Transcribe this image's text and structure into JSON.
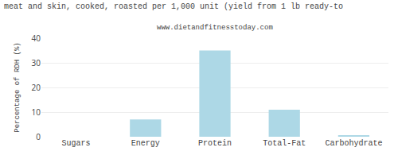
{
  "chart_data": {
    "type": "bar",
    "title": "meat and skin, cooked, roasted per 1,000 unit (yield from 1 lb ready-to",
    "subtitle": "www.dietandfitnesstoday.com",
    "categories": [
      "Sugars",
      "Energy",
      "Protein",
      "Total-Fat",
      "Carbohydrate"
    ],
    "values": [
      0.0,
      7.0,
      35.0,
      11.0,
      0.5
    ],
    "color": "#add8e6",
    "ylabel": "Percentage of RDH (%)",
    "ylim": [
      0,
      40
    ],
    "yticks": [
      0,
      10,
      20,
      30,
      40
    ],
    "grid": true
  }
}
